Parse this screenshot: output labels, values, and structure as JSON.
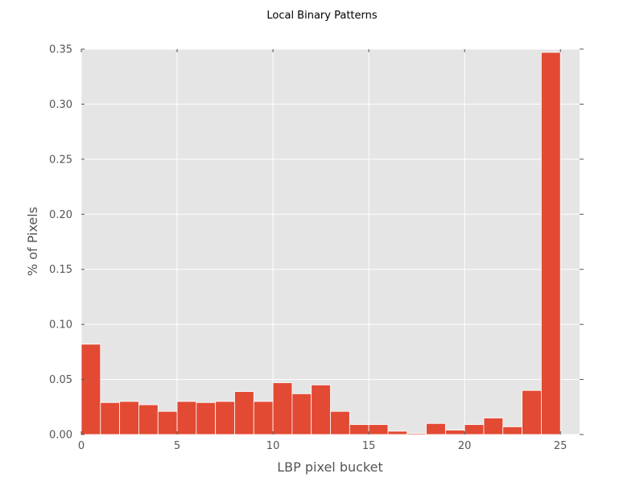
{
  "chart_data": {
    "type": "bar",
    "title": "Local Binary Patterns",
    "xlabel": "LBP pixel bucket",
    "ylabel": "% of Pixels",
    "xlim": [
      0,
      26
    ],
    "ylim": [
      0,
      0.35
    ],
    "xticks": [
      0,
      5,
      10,
      15,
      20,
      25
    ],
    "xtick_labels": [
      "0",
      "5",
      "10",
      "15",
      "20",
      "25"
    ],
    "yticks": [
      0,
      0.05,
      0.1,
      0.15,
      0.2,
      0.25,
      0.3,
      0.35
    ],
    "ytick_labels": [
      "0.00",
      "0.05",
      "0.10",
      "0.15",
      "0.20",
      "0.25",
      "0.30",
      "0.35"
    ],
    "grid": true,
    "bin_edges": [
      0,
      1,
      2,
      3,
      4,
      5,
      6,
      7,
      8,
      9,
      10,
      11,
      12,
      13,
      14,
      15,
      16,
      17,
      18,
      19,
      20,
      21,
      22,
      23,
      24,
      25,
      26
    ],
    "values": [
      0.082,
      0.029,
      0.03,
      0.027,
      0.021,
      0.03,
      0.029,
      0.03,
      0.039,
      0.03,
      0.047,
      0.037,
      0.045,
      0.021,
      0.009,
      0.009,
      0.003,
      0.001,
      0.01,
      0.004,
      0.009,
      0.015,
      0.007,
      0.04,
      0.347,
      0.0
    ],
    "colors": {
      "bar": "#E24A33",
      "plot_background": "#E5E5E5",
      "grid": "#FFFFFF",
      "text": "#555555",
      "title": "#000000"
    }
  }
}
